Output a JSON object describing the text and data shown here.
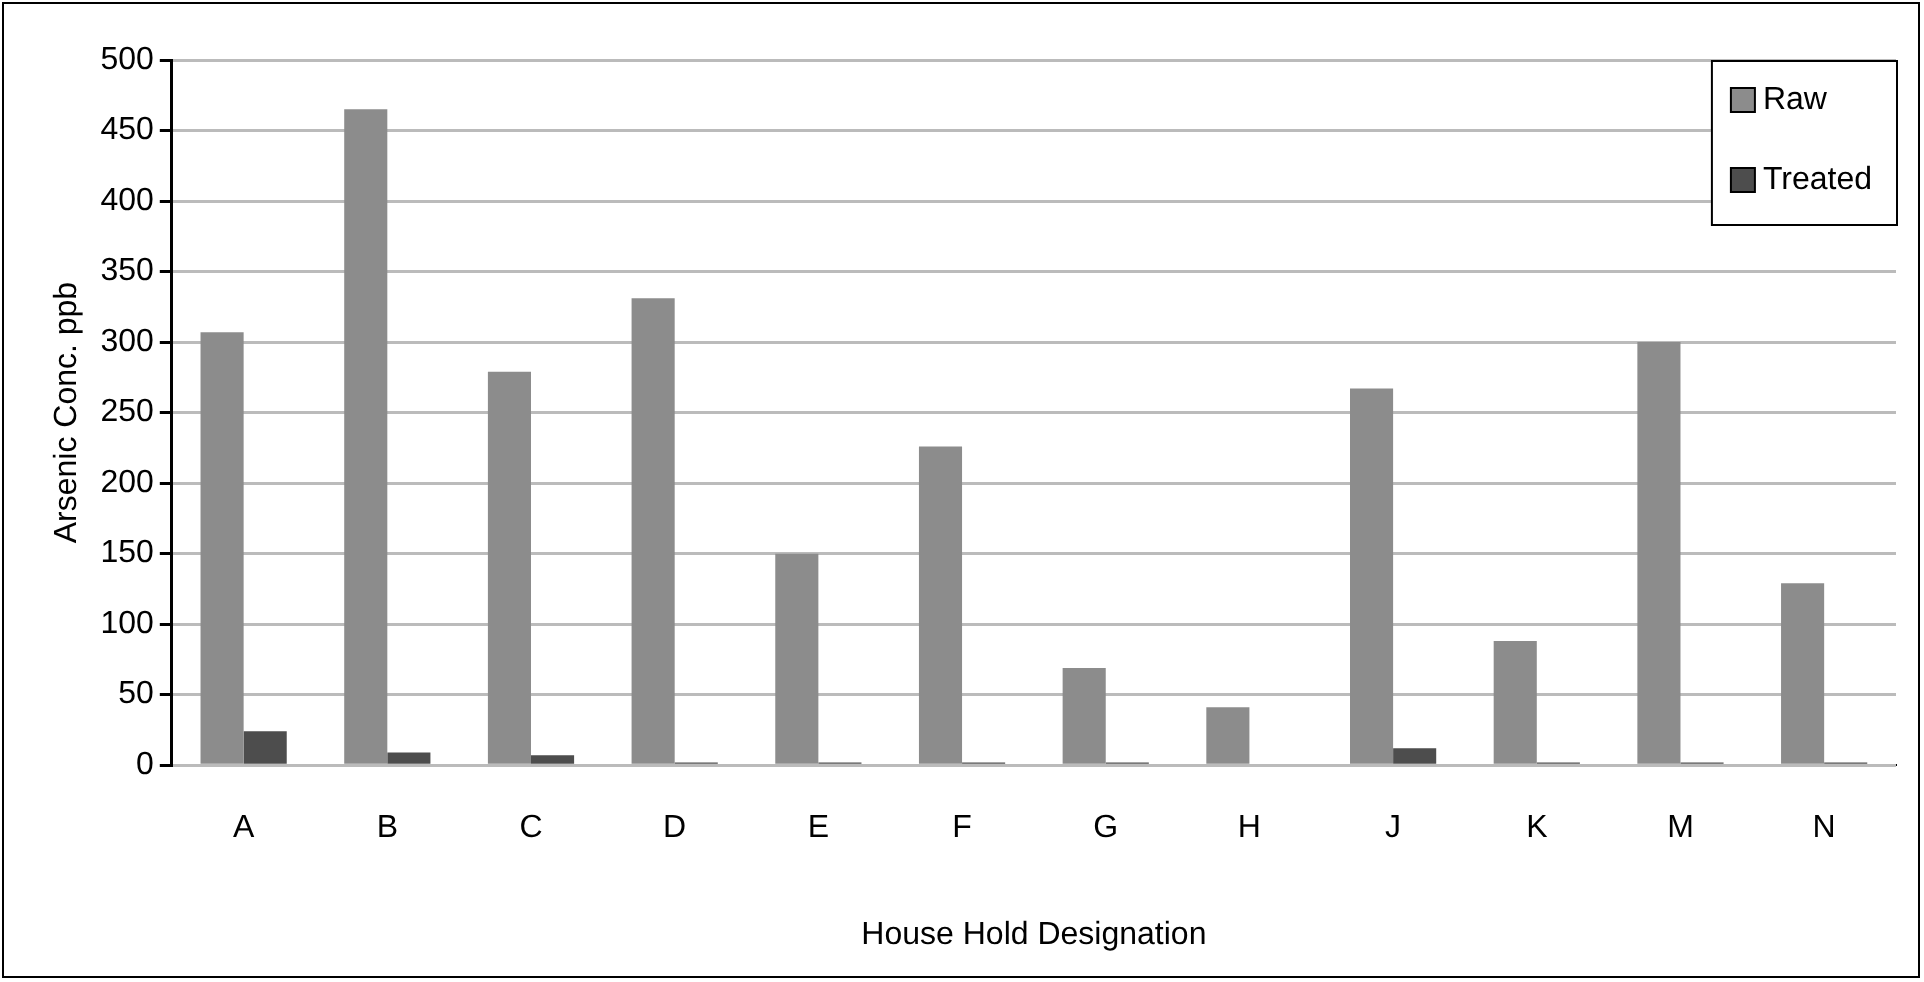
{
  "chart_data": {
    "type": "bar",
    "xlabel": "House Hold Designation",
    "ylabel": "Arsenic Conc. ppb",
    "categories": [
      "A",
      "B",
      "C",
      "D",
      "E",
      "F",
      "G",
      "H",
      "J",
      "K",
      "M",
      "N"
    ],
    "series": [
      {
        "name": "Raw",
        "color": "#8c8c8c",
        "values": [
          307,
          465,
          279,
          331,
          150,
          226,
          69,
          41,
          267,
          88,
          300,
          129
        ]
      },
      {
        "name": "Treated",
        "color": "#4d4d4d",
        "values": [
          24,
          9,
          7,
          2,
          2,
          2,
          2,
          0,
          12,
          2,
          2,
          2
        ]
      }
    ],
    "ylim": [
      0,
      500
    ],
    "yticks": [
      0,
      50,
      100,
      150,
      200,
      250,
      300,
      350,
      400,
      450,
      500
    ],
    "grid": "y",
    "legend": "top right"
  }
}
